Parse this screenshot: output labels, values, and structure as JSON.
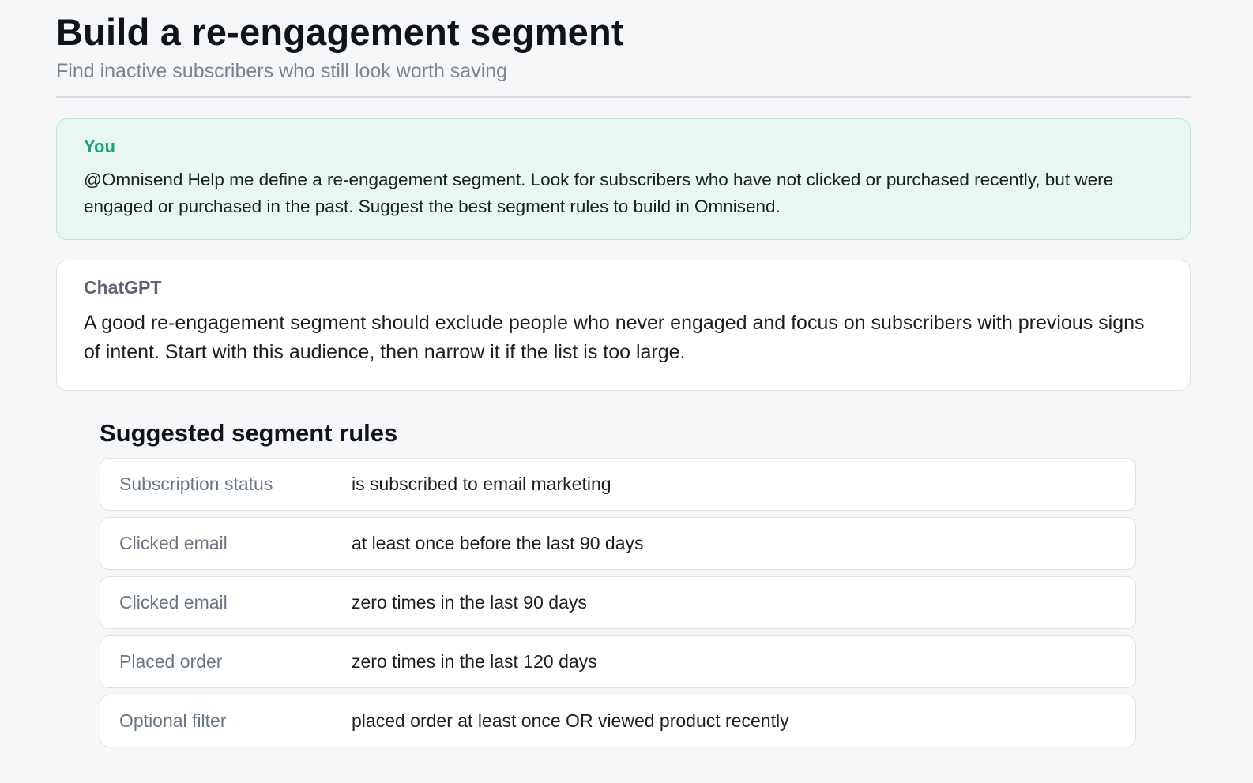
{
  "header": {
    "title": "Build a re-engagement segment",
    "subtitle": "Find inactive subscribers who still look worth saving"
  },
  "conversation": {
    "user": {
      "sender": "You",
      "text": "@Omnisend Help me define a re-engagement segment. Look for subscribers who have not clicked or purchased recently, but were engaged or purchased in the past. Suggest the best segment rules to build in Omnisend."
    },
    "assistant": {
      "sender": "ChatGPT",
      "text": "A good re-engagement segment should exclude people who never engaged and focus on subscribers with previous signs of intent. Start with this audience, then narrow it if the list is too large."
    }
  },
  "rules": {
    "title": "Suggested segment rules",
    "items": [
      {
        "label": "Subscription status",
        "value": "is subscribed to email marketing"
      },
      {
        "label": "Clicked email",
        "value": "at least once before the last 90 days"
      },
      {
        "label": "Clicked email",
        "value": "zero times in the last 90 days"
      },
      {
        "label": "Placed order",
        "value": "zero times in the last 120 days"
      },
      {
        "label": "Optional filter",
        "value": "placed order at least once OR viewed product recently"
      }
    ]
  },
  "colors": {
    "accent": "#1aa37a",
    "user_bubble_bg": "#e9f7f2",
    "user_bubble_border": "#b9e6d5",
    "background": "#f6f7f9"
  }
}
